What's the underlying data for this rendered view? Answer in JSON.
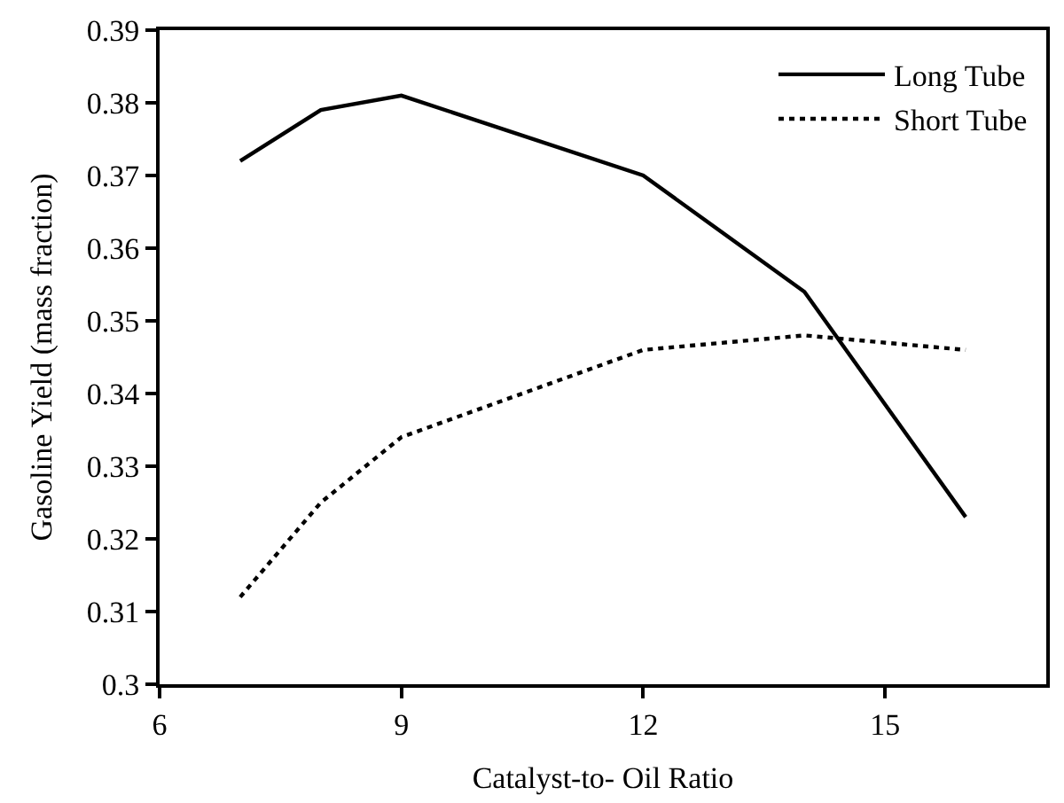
{
  "chart_data": {
    "type": "line",
    "xlabel": "Catalyst-to- Oil Ratio",
    "ylabel": "Gasoline Yield (mass fraction)",
    "x": [
      7,
      8,
      9,
      12,
      14,
      16
    ],
    "series": [
      {
        "name": "Long Tube",
        "color": "#000000",
        "line_style": "solid",
        "values": [
          0.372,
          0.379,
          0.381,
          0.37,
          0.354,
          0.323
        ]
      },
      {
        "name": "Short Tube",
        "color": "#000000",
        "line_style": "dotted",
        "values": [
          0.312,
          0.325,
          0.334,
          0.346,
          0.348,
          0.346
        ]
      }
    ],
    "xlim": [
      6,
      17
    ],
    "xticks": [
      6,
      9,
      12,
      15
    ],
    "ylim": [
      0.3,
      0.39
    ],
    "yticks": [
      {
        "value": 0.3,
        "label": "0.3"
      },
      0.31,
      0.32,
      0.33,
      0.34,
      0.35,
      0.36,
      0.37,
      0.38,
      0.39
    ],
    "legend": "top right",
    "marker": "none"
  }
}
